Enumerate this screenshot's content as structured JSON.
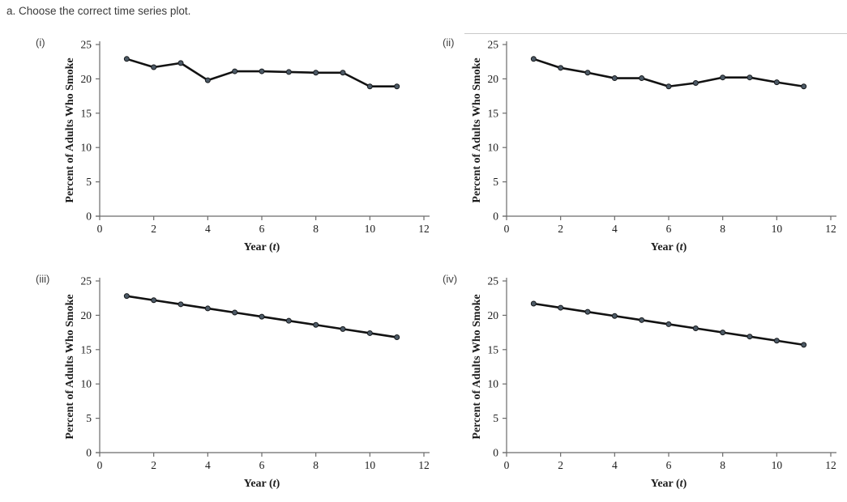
{
  "page": {
    "title": "a. Choose the correct time series plot."
  },
  "colors": {
    "line": "#121212",
    "marker_fill": "#4d5a66",
    "marker_stroke": "#16191c",
    "axis": "#6b6b6b",
    "tick_text": "#1c1c1c",
    "divider": "#c9c9c9"
  },
  "chart_data": [
    {
      "label": "(i)",
      "type": "line",
      "x": [
        1,
        2,
        3,
        4,
        5,
        6,
        7,
        8,
        9,
        10,
        11
      ],
      "values": [
        22.9,
        21.7,
        22.3,
        19.8,
        21.1,
        21.1,
        21.0,
        20.9,
        20.9,
        18.9,
        18.9
      ],
      "xlabel": "Year (t)",
      "ylabel": "Percent of Adults Who Smoke",
      "xlim": [
        0,
        12
      ],
      "ylim": [
        0,
        25
      ],
      "xticks": [
        0,
        2,
        4,
        6,
        8,
        10,
        12
      ],
      "yticks": [
        0,
        5,
        10,
        15,
        20,
        25
      ],
      "grid": false,
      "legend": "none"
    },
    {
      "label": "(ii)",
      "type": "line",
      "x": [
        1,
        2,
        3,
        4,
        5,
        6,
        7,
        8,
        9,
        10,
        11
      ],
      "values": [
        22.9,
        21.6,
        20.9,
        20.1,
        20.1,
        18.9,
        19.4,
        20.2,
        20.2,
        19.5,
        18.9
      ],
      "xlabel": "Year (t)",
      "ylabel": "Percent of Adults Who Smoke",
      "xlim": [
        0,
        12
      ],
      "ylim": [
        0,
        25
      ],
      "xticks": [
        0,
        2,
        4,
        6,
        8,
        10,
        12
      ],
      "yticks": [
        0,
        5,
        10,
        15,
        20,
        25
      ],
      "grid": false,
      "legend": "none"
    },
    {
      "label": "(iii)",
      "type": "line",
      "x": [
        1,
        2,
        3,
        4,
        5,
        6,
        7,
        8,
        9,
        10,
        11
      ],
      "values": [
        22.8,
        22.2,
        21.6,
        21.0,
        20.4,
        19.8,
        19.2,
        18.6,
        18.0,
        17.4,
        16.8
      ],
      "xlabel": "Year (t)",
      "ylabel": "Percent of Adults Who Smoke",
      "xlim": [
        0,
        12
      ],
      "ylim": [
        0,
        25
      ],
      "xticks": [
        0,
        2,
        4,
        6,
        8,
        10,
        12
      ],
      "yticks": [
        0,
        5,
        10,
        15,
        20,
        25
      ],
      "grid": false,
      "legend": "none"
    },
    {
      "label": "(iv)",
      "type": "line",
      "x": [
        1,
        2,
        3,
        4,
        5,
        6,
        7,
        8,
        9,
        10,
        11
      ],
      "values": [
        21.7,
        21.1,
        20.5,
        19.9,
        19.3,
        18.7,
        18.1,
        17.5,
        16.9,
        16.3,
        15.7
      ],
      "xlabel": "Year (t)",
      "ylabel": "Percent of Adults Who Smoke",
      "xlim": [
        0,
        12
      ],
      "ylim": [
        0,
        25
      ],
      "xticks": [
        0,
        2,
        4,
        6,
        8,
        10,
        12
      ],
      "yticks": [
        0,
        5,
        10,
        15,
        20,
        25
      ],
      "grid": false,
      "legend": "none"
    }
  ]
}
